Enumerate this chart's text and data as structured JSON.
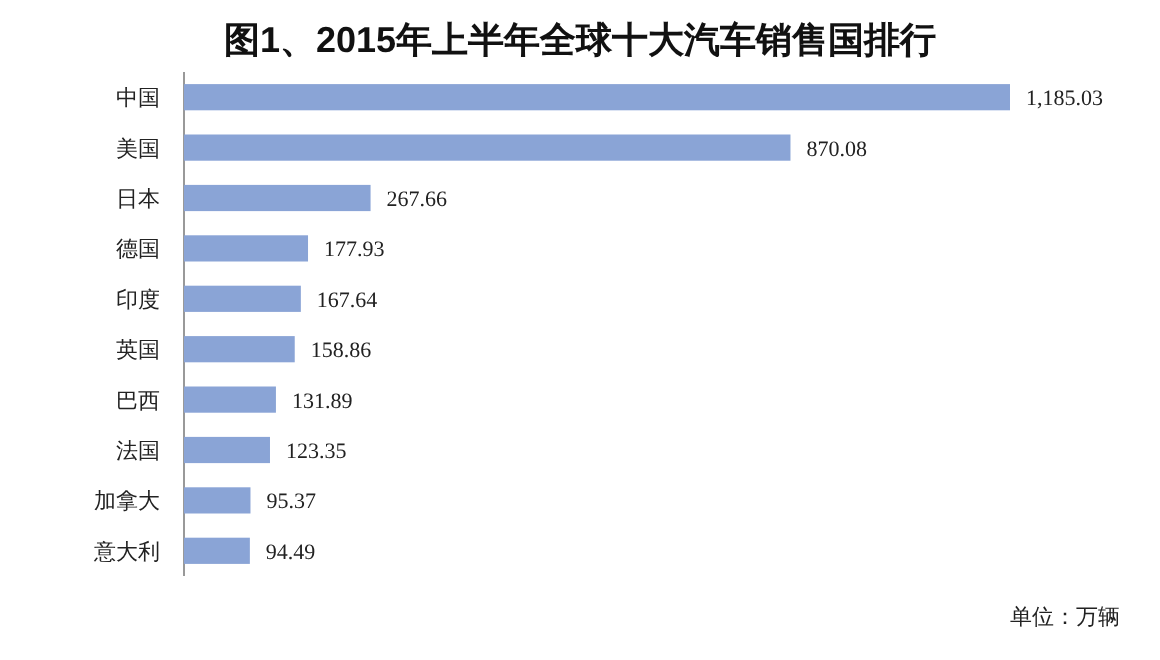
{
  "chart_data": {
    "type": "bar",
    "orientation": "horizontal",
    "title": "图1、2015年上半年全球十大汽车销售国排行",
    "categories": [
      "中国",
      "美国",
      "日本",
      "德国",
      "印度",
      "英国",
      "巴西",
      "法国",
      "加拿大",
      "意大利"
    ],
    "values": [
      1185.03,
      870.08,
      267.66,
      177.93,
      167.64,
      158.86,
      131.89,
      123.35,
      95.37,
      94.49
    ],
    "value_labels": [
      "1,185.03",
      "870.08",
      "267.66",
      "177.93",
      "167.64",
      "158.86",
      "131.89",
      "123.35",
      "95.37",
      "94.49"
    ],
    "color": "#8aa4d6",
    "annotations": [
      "单位：万辆"
    ]
  }
}
